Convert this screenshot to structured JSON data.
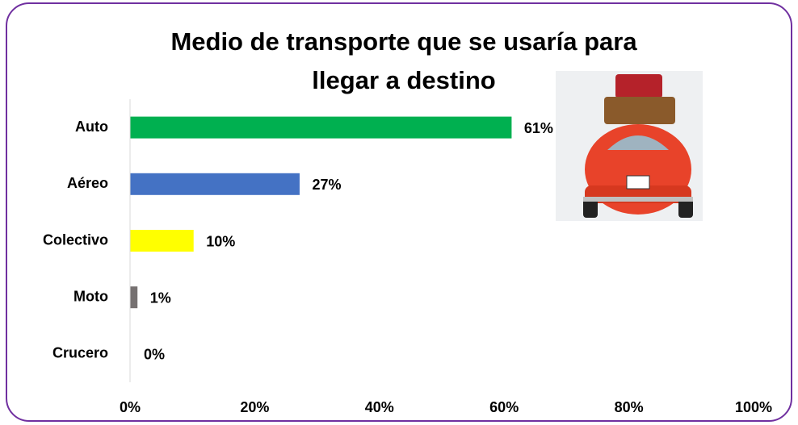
{
  "chart_data": {
    "type": "bar",
    "orientation": "horizontal",
    "title": [
      "Medio de transporte que se usaría para",
      "llegar a destino"
    ],
    "categories": [
      "Auto",
      "Aéreo",
      "Colectivo",
      "Moto",
      "Crucero"
    ],
    "values": [
      61,
      27,
      10,
      1,
      0
    ],
    "value_labels": [
      "61%",
      "27%",
      "10%",
      "1%",
      "0%"
    ],
    "colors": [
      "#00b050",
      "#4472c4",
      "#ffff00",
      "#767171",
      "#4472c4"
    ],
    "xlim": [
      0,
      100
    ],
    "xticks": [
      {
        "value": 0,
        "label": "0%"
      },
      {
        "value": 20,
        "label": "20%"
      },
      {
        "value": 40,
        "label": "40%"
      },
      {
        "value": 60,
        "label": "60%"
      },
      {
        "value": 80,
        "label": "80%"
      },
      {
        "value": 100,
        "label": "100%"
      }
    ],
    "grid": false
  }
}
